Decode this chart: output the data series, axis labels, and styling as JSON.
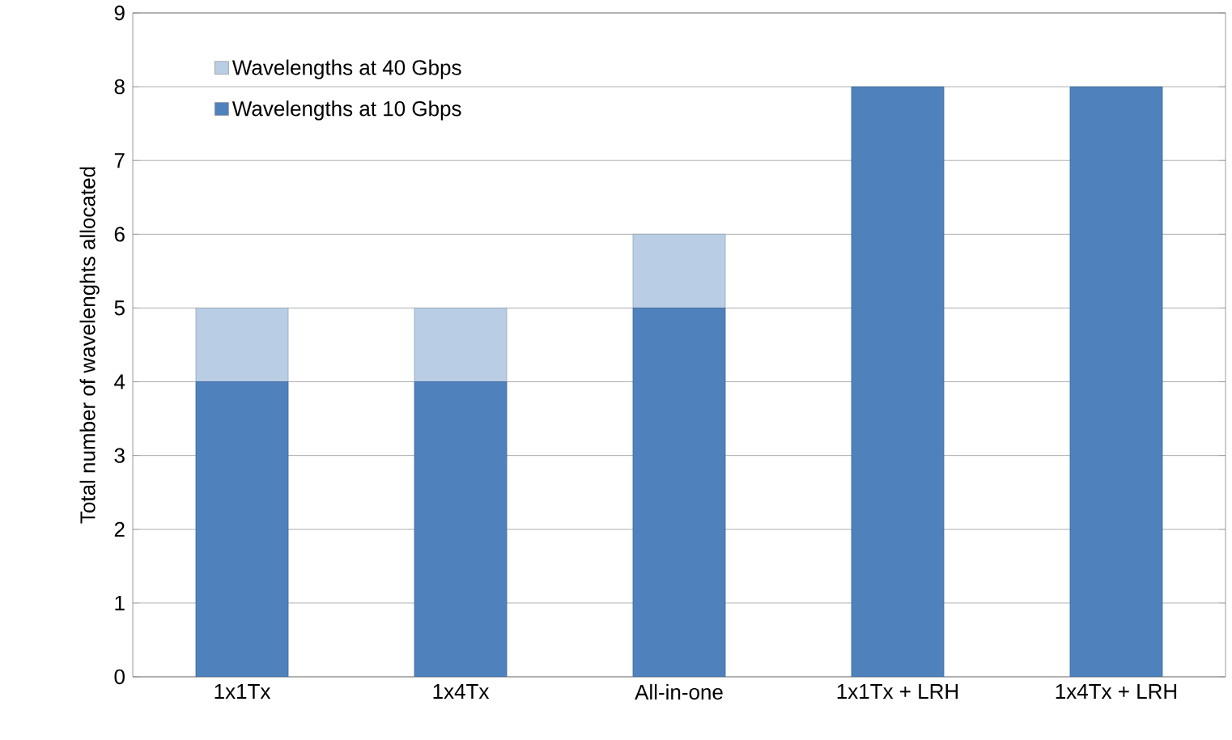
{
  "chart_data": {
    "type": "bar",
    "stacked": true,
    "ylabel": "Total number of wavelenghts allocated",
    "categories": [
      "1x1Tx",
      "1x4Tx",
      "All-in-one",
      "1x1Tx + LRH",
      "1x4Tx + LRH"
    ],
    "series": [
      {
        "name": "Wavelengths at 10 Gbps",
        "color": "#4f81bd",
        "values": [
          4,
          4,
          5,
          8,
          8
        ]
      },
      {
        "name": "Wavelengths at 40 Gbps",
        "color": "#b9cde5",
        "values": [
          1,
          1,
          1,
          0,
          0
        ]
      }
    ],
    "ylim": [
      0,
      9
    ],
    "yticks": [
      0,
      1,
      2,
      3,
      4,
      5,
      6,
      7,
      8,
      9
    ],
    "grid": "y",
    "legend": "top left"
  }
}
